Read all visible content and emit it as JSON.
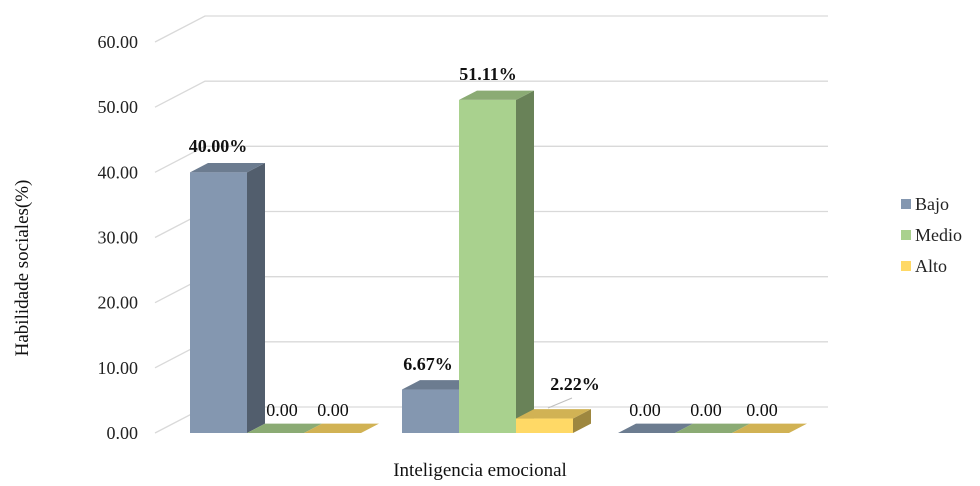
{
  "chart_data": {
    "type": "bar",
    "style": "3d-clustered-column",
    "title": "",
    "xlabel": "Inteligencia emocional",
    "ylabel": "Habilidade sociales(%)",
    "ylim": [
      0,
      60
    ],
    "yticks": [
      "0.00",
      "10.00",
      "20.00",
      "30.00",
      "40.00",
      "50.00",
      "60.00"
    ],
    "grid": true,
    "legend_position": "right",
    "categories": [
      "",
      "",
      ""
    ],
    "series": [
      {
        "name": "Bajo",
        "color": "#8497b0",
        "values": [
          40.0,
          6.67,
          0.0
        ],
        "labels": [
          "40.00%",
          "6.67%",
          "0.00"
        ]
      },
      {
        "name": "Medio",
        "color": "#a9d18e",
        "values": [
          0.0,
          51.11,
          0.0
        ],
        "labels": [
          "0.00",
          "51.11%",
          "0.00"
        ]
      },
      {
        "name": "Alto",
        "color": "#ffd966",
        "values": [
          0.0,
          2.22,
          0.0
        ],
        "labels": [
          "0.00",
          "2.22%",
          "0.00"
        ]
      }
    ]
  }
}
